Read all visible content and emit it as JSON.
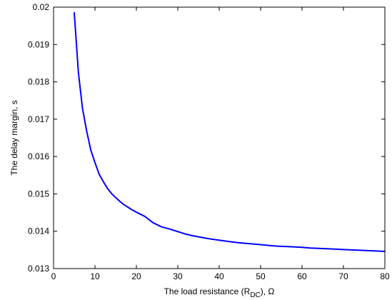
{
  "chart_data": {
    "type": "line",
    "title": "",
    "xlabel": "The load resistance (R_DC), Ω",
    "xlabel_parts": {
      "before": "The load resistance (R",
      "sub": "DC",
      "after": "), Ω"
    },
    "ylabel": "The delay margin, s",
    "xlim": [
      0,
      80
    ],
    "ylim": [
      0.013,
      0.02
    ],
    "xticks": [
      "0",
      "10",
      "20",
      "30",
      "40",
      "50",
      "60",
      "70",
      "80"
    ],
    "yticks": [
      "0.013",
      "0.014",
      "0.015",
      "0.016",
      "0.017",
      "0.018",
      "0.019",
      "0.02"
    ],
    "grid": false,
    "legend": false,
    "line_color": "#0000FF",
    "series": [
      {
        "x": [
          5,
          6,
          7,
          8,
          9,
          10,
          11,
          12,
          13,
          14,
          15,
          16,
          17,
          18,
          19,
          20,
          22,
          24,
          26,
          28,
          30,
          32,
          34,
          36,
          38,
          40,
          42,
          44,
          46,
          48,
          50,
          52,
          54,
          56,
          58,
          60,
          62,
          64,
          66,
          68,
          70,
          72,
          74,
          76,
          78,
          80
        ],
        "y": [
          0.01985,
          0.01825,
          0.01728,
          0.01668,
          0.01617,
          0.01584,
          0.01553,
          0.01533,
          0.01515,
          0.01501,
          0.0149,
          0.0148,
          0.01471,
          0.01464,
          0.01457,
          0.01451,
          0.0144,
          0.01423,
          0.01412,
          0.01406,
          0.01399,
          0.01392,
          0.01387,
          0.01383,
          0.01379,
          0.01376,
          0.01373,
          0.0137,
          0.01368,
          0.01366,
          0.01364,
          0.01362,
          0.0136,
          0.01359,
          0.01358,
          0.01357,
          0.01355,
          0.01354,
          0.01353,
          0.01352,
          0.01351,
          0.0135,
          0.01349,
          0.01348,
          0.01347,
          0.01346
        ]
      }
    ]
  }
}
